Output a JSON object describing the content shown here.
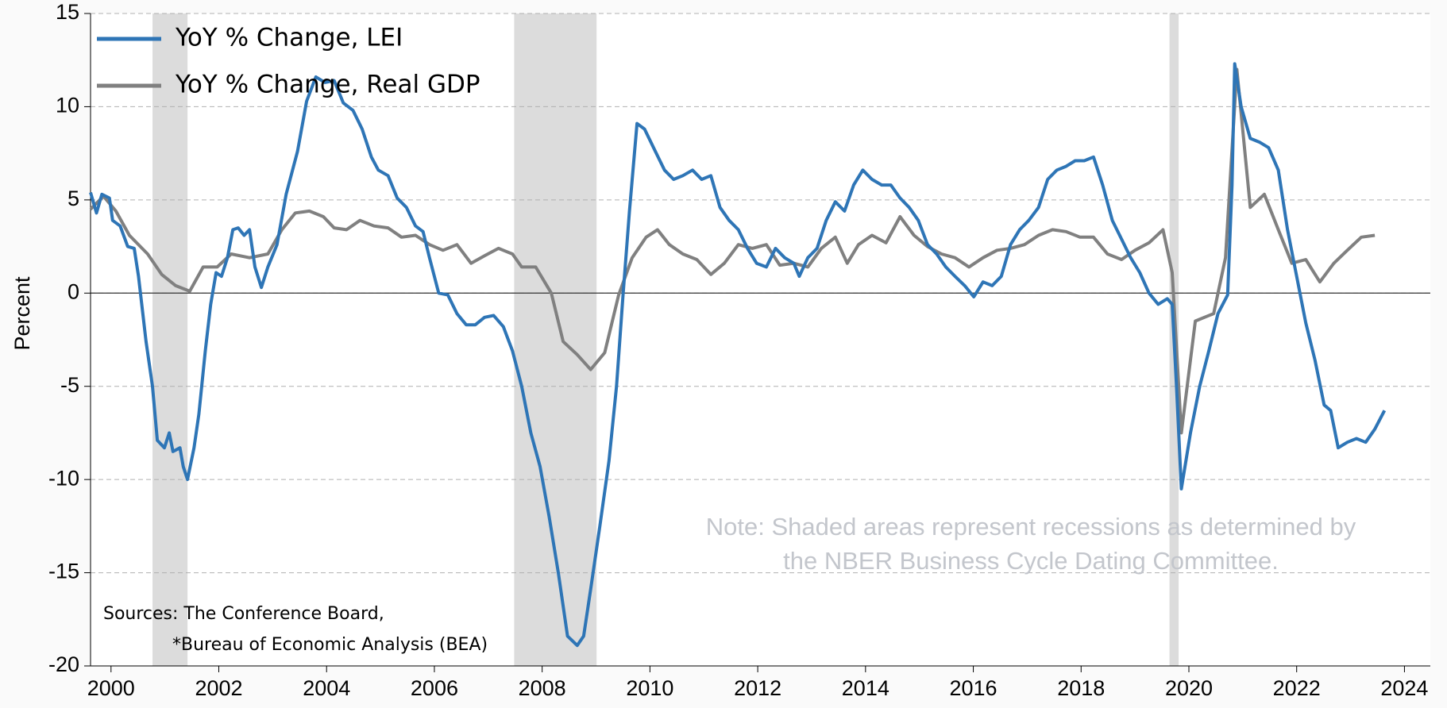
{
  "chart_data": {
    "type": "line",
    "ylabel": "Percent",
    "xlim": [
      1999.62,
      2024.48
    ],
    "xticks": [
      2000,
      2002,
      2004,
      2006,
      2008,
      2010,
      2012,
      2014,
      2016,
      2018,
      2020,
      2022,
      2024
    ],
    "ylim": [
      -20,
      15
    ],
    "yticks": [
      -20,
      -15,
      -10,
      -5,
      0,
      5,
      10,
      15
    ],
    "grid": true,
    "reference_line": 0,
    "legend": "upper left",
    "recessions": [
      [
        2000.77,
        2001.42
      ],
      [
        2007.48,
        2009.01
      ],
      [
        2019.64,
        2019.81
      ]
    ],
    "recession_color": "#dcdcdc",
    "note": [
      "Note: Shaded areas represent recessions as determined by",
      "the NBER Business Cycle Dating Committee."
    ],
    "sources": [
      "Sources: The Conference Board,",
      "*Bureau of Economic Analysis (BEA)"
    ],
    "series": [
      {
        "name": "YoY % Change, LEI",
        "color": "#2e75b6",
        "x": [
          1999.62,
          1999.73,
          1999.83,
          1999.97,
          2000.03,
          2000.17,
          2000.31,
          2000.43,
          2000.51,
          2000.65,
          2000.77,
          2000.86,
          2000.99,
          2001.08,
          2001.15,
          2001.28,
          2001.34,
          2001.42,
          2001.54,
          2001.63,
          2001.75,
          2001.85,
          2001.95,
          2002.05,
          2002.16,
          2002.26,
          2002.36,
          2002.47,
          2002.57,
          2002.67,
          2002.79,
          2002.91,
          2003.08,
          2003.25,
          2003.46,
          2003.63,
          2003.8,
          2003.97,
          2004.14,
          2004.31,
          2004.49,
          2004.66,
          2004.83,
          2004.96,
          2005.14,
          2005.31,
          2005.48,
          2005.65,
          2005.79,
          2005.91,
          2006.08,
          2006.25,
          2006.42,
          2006.59,
          2006.76,
          2006.93,
          2007.1,
          2007.28,
          2007.45,
          2007.62,
          2007.79,
          2007.96,
          2008.13,
          2008.3,
          2008.47,
          2008.65,
          2008.77,
          2008.9,
          2009.07,
          2009.24,
          2009.38,
          2009.5,
          2009.62,
          2009.76,
          2009.9,
          2010.1,
          2010.27,
          2010.44,
          2010.61,
          2010.79,
          2010.96,
          2011.13,
          2011.3,
          2011.47,
          2011.64,
          2011.81,
          2011.98,
          2012.16,
          2012.33,
          2012.5,
          2012.67,
          2012.77,
          2012.93,
          2013.1,
          2013.27,
          2013.44,
          2013.61,
          2013.78,
          2013.95,
          2014.12,
          2014.3,
          2014.47,
          2014.64,
          2014.81,
          2014.98,
          2015.15,
          2015.32,
          2015.49,
          2015.66,
          2015.84,
          2016.01,
          2016.18,
          2016.35,
          2016.52,
          2016.69,
          2016.86,
          2017.03,
          2017.21,
          2017.38,
          2017.55,
          2017.72,
          2017.89,
          2018.06,
          2018.23,
          2018.4,
          2018.58,
          2018.75,
          2018.92,
          2019.09,
          2019.26,
          2019.43,
          2019.6,
          2019.69,
          2019.77,
          2019.86,
          2020.03,
          2020.2,
          2020.37,
          2020.54,
          2020.72,
          2020.8,
          2020.85,
          2020.97,
          2021.14,
          2021.31,
          2021.48,
          2021.66,
          2021.83,
          2022.0,
          2022.17,
          2022.34,
          2022.51,
          2022.63,
          2022.77,
          2022.94,
          2023.11,
          2023.28,
          2023.45,
          2023.63
        ],
        "values": [
          5.4,
          4.3,
          5.3,
          5.1,
          3.9,
          3.6,
          2.5,
          2.4,
          0.9,
          -2.6,
          -5.0,
          -7.9,
          -8.3,
          -7.5,
          -8.5,
          -8.3,
          -9.3,
          -10.0,
          -8.3,
          -6.5,
          -3.1,
          -0.6,
          1.1,
          0.9,
          1.9,
          3.4,
          3.5,
          3.1,
          3.4,
          1.4,
          0.3,
          1.4,
          2.6,
          5.3,
          7.6,
          10.3,
          11.6,
          11.3,
          11.4,
          10.2,
          9.8,
          8.8,
          7.3,
          6.6,
          6.3,
          5.1,
          4.6,
          3.6,
          3.3,
          1.9,
          0,
          -0.1,
          -1.1,
          -1.7,
          -1.7,
          -1.3,
          -1.2,
          -1.8,
          -3.1,
          -5.0,
          -7.5,
          -9.3,
          -12.0,
          -15.0,
          -18.4,
          -18.9,
          -18.4,
          -15.9,
          -12.5,
          -9.0,
          -5.0,
          -0.1,
          4.4,
          9.1,
          8.8,
          7.6,
          6.6,
          6.1,
          6.3,
          6.6,
          6.1,
          6.3,
          4.6,
          3.9,
          3.4,
          2.4,
          1.6,
          1.4,
          2.4,
          1.9,
          1.6,
          0.9,
          1.9,
          2.4,
          3.9,
          4.9,
          4.4,
          5.8,
          6.6,
          6.1,
          5.8,
          5.8,
          5.1,
          4.6,
          3.9,
          2.6,
          2.1,
          1.4,
          0.9,
          0.4,
          -0.2,
          0.6,
          0.4,
          0.9,
          2.6,
          3.4,
          3.9,
          4.6,
          6.1,
          6.6,
          6.8,
          7.1,
          7.1,
          7.3,
          5.8,
          3.9,
          2.9,
          1.9,
          1.1,
          0,
          -0.6,
          -0.3,
          -0.6,
          -5.0,
          -10.5,
          -7.5,
          -5.0,
          -3.1,
          -1.1,
          -0.1,
          5.8,
          12.3,
          10.0,
          8.3,
          8.1,
          7.8,
          6.6,
          3.4,
          0.9,
          -1.6,
          -3.6,
          -6.0,
          -6.3,
          -8.3,
          -8.0,
          -7.8,
          -8.0,
          -7.3,
          -6.3
        ]
      },
      {
        "name": "YoY % Change, Real GDP",
        "color": "#808080",
        "x": [
          1999.62,
          1999.86,
          2000.09,
          2000.34,
          2000.68,
          2000.94,
          2001.2,
          2001.46,
          2001.71,
          2001.97,
          2002.23,
          2002.57,
          2002.91,
          2003.17,
          2003.42,
          2003.68,
          2003.94,
          2004.14,
          2004.37,
          2004.62,
          2004.88,
          2005.14,
          2005.39,
          2005.65,
          2005.91,
          2006.16,
          2006.42,
          2006.68,
          2006.93,
          2007.19,
          2007.45,
          2007.62,
          2007.88,
          2008.17,
          2008.39,
          2008.65,
          2008.9,
          2009.16,
          2009.42,
          2009.67,
          2009.93,
          2010.14,
          2010.36,
          2010.61,
          2010.87,
          2011.13,
          2011.38,
          2011.64,
          2011.9,
          2012.16,
          2012.41,
          2012.67,
          2012.93,
          2013.18,
          2013.44,
          2013.66,
          2013.87,
          2014.12,
          2014.38,
          2014.64,
          2014.9,
          2015.15,
          2015.41,
          2015.66,
          2015.92,
          2016.18,
          2016.44,
          2016.69,
          2016.95,
          2017.21,
          2017.47,
          2017.72,
          2017.98,
          2018.23,
          2018.49,
          2018.75,
          2019.0,
          2019.26,
          2019.52,
          2019.69,
          2019.86,
          2020.12,
          2020.46,
          2020.68,
          2020.89,
          2021.14,
          2021.4,
          2021.66,
          2021.91,
          2022.17,
          2022.43,
          2022.69,
          2022.94,
          2023.2,
          2023.45
        ],
        "values": [
          4.5,
          5.2,
          4.4,
          3.1,
          2.1,
          1.0,
          0.4,
          0.1,
          1.4,
          1.4,
          2.1,
          1.9,
          2.1,
          3.4,
          4.3,
          4.4,
          4.1,
          3.5,
          3.4,
          3.9,
          3.6,
          3.5,
          3.0,
          3.1,
          2.6,
          2.3,
          2.6,
          1.6,
          2.0,
          2.4,
          2.1,
          1.4,
          1.4,
          0,
          -2.6,
          -3.3,
          -4.1,
          -3.2,
          -0.1,
          1.9,
          3.0,
          3.4,
          2.6,
          2.1,
          1.8,
          1.0,
          1.6,
          2.6,
          2.4,
          2.6,
          1.5,
          1.6,
          1.4,
          2.4,
          3.0,
          1.6,
          2.6,
          3.1,
          2.7,
          4.1,
          3.1,
          2.5,
          2.1,
          1.9,
          1.4,
          1.9,
          2.3,
          2.4,
          2.6,
          3.1,
          3.4,
          3.3,
          3.0,
          3.0,
          2.1,
          1.8,
          2.3,
          2.7,
          3.4,
          1.1,
          -7.5,
          -1.5,
          -1.1,
          1.9,
          12.0,
          4.6,
          5.3,
          3.4,
          1.6,
          1.8,
          0.6,
          1.6,
          2.3,
          3.0,
          3.1
        ]
      }
    ]
  }
}
